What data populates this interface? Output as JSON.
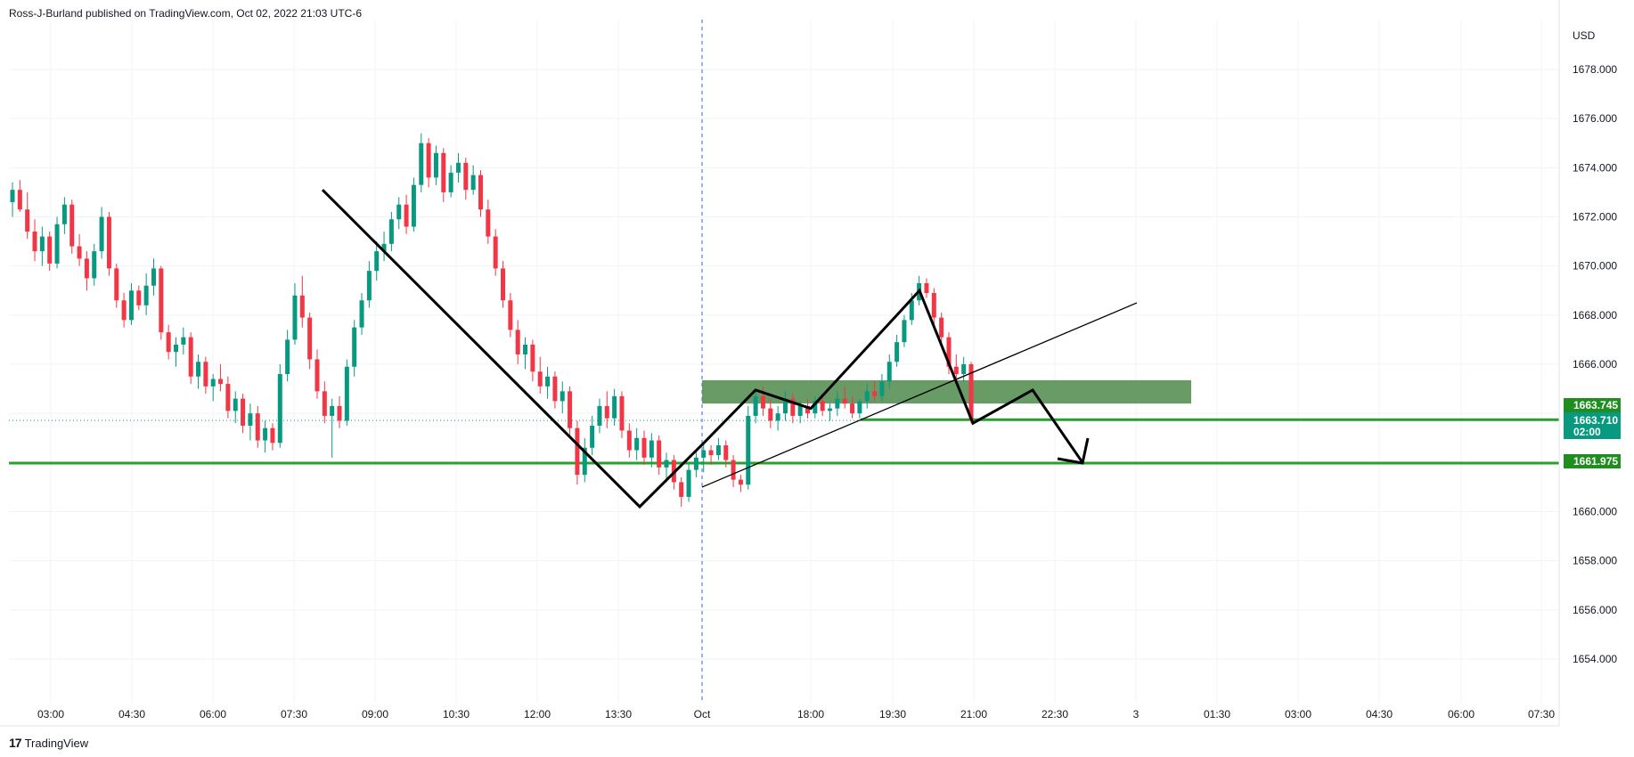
{
  "header": {
    "attribution": "Ross-J-Burland published on TradingView.com, Oct 02, 2022 21:03 UTC-6"
  },
  "footer": {
    "brand": "TradingView",
    "logo_glyph": "17"
  },
  "colors": {
    "bull": "#089981",
    "bear": "#f23645",
    "wick_bull": "#089981",
    "wick_bear": "#f23645",
    "level_line": "#2ca02c",
    "zone_fill": "#4e8a4a",
    "badge": "#1e8f1e",
    "badge_teal": "#089981",
    "grid": "#f0f3fa",
    "session": "#2962ff"
  },
  "chart_data": {
    "type": "candlestick",
    "currency": "USD",
    "ylim": [
      1652.5,
      1679.5
    ],
    "y_ticks": [
      "1678.000",
      "1676.000",
      "1674.000",
      "1672.000",
      "1670.000",
      "1668.000",
      "1666.000",
      "1664.000",
      "1662.000",
      "1660.000",
      "1658.000",
      "1656.000",
      "1654.000"
    ],
    "x_ticks": [
      "03:00",
      "04:30",
      "06:00",
      "07:30",
      "09:00",
      "10:30",
      "12:00",
      "13:30",
      "Oct",
      "18:00",
      "19:30",
      "21:00",
      "22:30",
      "3",
      "01:30",
      "03:00",
      "04:30",
      "06:00",
      "07:30"
    ],
    "price_badges": [
      {
        "label": "1663.745",
        "value": 1663.745,
        "style": "green"
      },
      {
        "label": "1663.710",
        "value": 1663.71,
        "style": "teal",
        "sub": "02:00"
      },
      {
        "label": "1661.975",
        "value": 1661.975,
        "style": "green"
      }
    ],
    "horizontal_levels": [
      1663.745,
      1661.975
    ],
    "zone": {
      "from": 1664.4,
      "to": 1665.35
    },
    "path_points": [
      {
        "x": "07:50",
        "y": 1673.1
      },
      {
        "x": "13:45",
        "y": 1660.2
      },
      {
        "x": "Oct",
        "y": 1662.8
      },
      {
        "x": "16:00",
        "y": 1664.95
      },
      {
        "x": "18:00",
        "y": 1664.2
      },
      {
        "x": "20:00",
        "y": 1669.0
      },
      {
        "x": "21:00",
        "y": 1663.6
      },
      {
        "x": "22:00",
        "y": 1664.95
      },
      {
        "x": "22:50",
        "y": 1662.0
      }
    ],
    "trend_line": [
      {
        "x": "Oct",
        "y": 1661.0
      },
      {
        "x": "23:30",
        "y": 1668.5
      }
    ],
    "candles": [
      [
        1672.6,
        1673.4,
        1672.0,
        1673.1
      ],
      [
        1673.1,
        1673.5,
        1672.2,
        1672.3
      ],
      [
        1672.3,
        1673.0,
        1671.1,
        1671.4
      ],
      [
        1671.4,
        1671.9,
        1670.2,
        1670.6
      ],
      [
        1670.6,
        1671.6,
        1670.0,
        1671.2
      ],
      [
        1671.2,
        1671.4,
        1669.8,
        1670.1
      ],
      [
        1670.1,
        1672.0,
        1669.9,
        1671.7
      ],
      [
        1671.7,
        1672.8,
        1671.3,
        1672.5
      ],
      [
        1672.5,
        1672.7,
        1670.5,
        1670.8
      ],
      [
        1670.8,
        1671.3,
        1670.0,
        1670.3
      ],
      [
        1670.3,
        1670.6,
        1669.0,
        1669.5
      ],
      [
        1669.5,
        1670.9,
        1669.2,
        1670.6
      ],
      [
        1670.6,
        1672.4,
        1670.3,
        1672.0
      ],
      [
        1672.0,
        1672.2,
        1669.6,
        1669.9
      ],
      [
        1669.9,
        1670.1,
        1668.3,
        1668.6
      ],
      [
        1668.6,
        1668.9,
        1667.5,
        1667.8
      ],
      [
        1667.8,
        1669.3,
        1667.6,
        1669.0
      ],
      [
        1669.0,
        1669.2,
        1668.2,
        1668.4
      ],
      [
        1668.4,
        1669.7,
        1668.0,
        1669.2
      ],
      [
        1669.2,
        1670.3,
        1668.8,
        1669.9
      ],
      [
        1669.9,
        1670.0,
        1667.0,
        1667.3
      ],
      [
        1667.3,
        1667.6,
        1666.2,
        1666.5
      ],
      [
        1666.5,
        1667.1,
        1665.9,
        1666.8
      ],
      [
        1666.8,
        1667.5,
        1666.4,
        1667.1
      ],
      [
        1667.1,
        1667.3,
        1665.2,
        1665.5
      ],
      [
        1665.5,
        1666.4,
        1665.0,
        1666.1
      ],
      [
        1666.1,
        1666.3,
        1664.8,
        1665.1
      ],
      [
        1665.1,
        1665.6,
        1664.5,
        1665.4
      ],
      [
        1665.4,
        1666.0,
        1664.9,
        1665.2
      ],
      [
        1665.2,
        1665.5,
        1663.8,
        1664.1
      ],
      [
        1664.1,
        1664.9,
        1663.6,
        1664.6
      ],
      [
        1664.6,
        1664.8,
        1663.2,
        1663.5
      ],
      [
        1663.5,
        1664.4,
        1662.9,
        1664.0
      ],
      [
        1664.0,
        1664.3,
        1662.6,
        1662.9
      ],
      [
        1662.9,
        1663.7,
        1662.4,
        1663.4
      ],
      [
        1663.4,
        1663.6,
        1662.5,
        1662.8
      ],
      [
        1662.8,
        1666.0,
        1662.6,
        1665.6
      ],
      [
        1665.6,
        1667.4,
        1665.3,
        1667.0
      ],
      [
        1667.0,
        1669.3,
        1666.8,
        1668.8
      ],
      [
        1668.8,
        1669.6,
        1667.5,
        1667.9
      ],
      [
        1667.9,
        1668.1,
        1665.8,
        1666.2
      ],
      [
        1666.2,
        1666.6,
        1664.6,
        1664.9
      ],
      [
        1664.9,
        1665.3,
        1663.6,
        1663.9
      ],
      [
        1663.9,
        1664.6,
        1662.2,
        1664.3
      ],
      [
        1664.3,
        1664.7,
        1663.4,
        1663.7
      ],
      [
        1663.7,
        1666.2,
        1663.5,
        1665.9
      ],
      [
        1665.9,
        1667.8,
        1665.5,
        1667.5
      ],
      [
        1667.5,
        1668.9,
        1667.2,
        1668.6
      ],
      [
        1668.6,
        1670.2,
        1668.3,
        1669.8
      ],
      [
        1669.8,
        1671.0,
        1669.4,
        1670.6
      ],
      [
        1670.6,
        1671.4,
        1670.2,
        1670.9
      ],
      [
        1670.9,
        1672.2,
        1670.6,
        1671.9
      ],
      [
        1671.9,
        1672.8,
        1671.5,
        1672.5
      ],
      [
        1672.5,
        1672.9,
        1671.3,
        1671.6
      ],
      [
        1671.6,
        1673.6,
        1671.4,
        1673.3
      ],
      [
        1673.3,
        1675.4,
        1673.0,
        1675.0
      ],
      [
        1675.0,
        1675.2,
        1673.2,
        1673.6
      ],
      [
        1673.6,
        1674.9,
        1673.3,
        1674.6
      ],
      [
        1674.6,
        1674.8,
        1672.6,
        1673.0
      ],
      [
        1673.0,
        1674.1,
        1672.8,
        1673.8
      ],
      [
        1673.8,
        1674.6,
        1673.4,
        1674.2
      ],
      [
        1674.2,
        1674.4,
        1672.7,
        1673.1
      ],
      [
        1673.1,
        1674.1,
        1672.9,
        1673.7
      ],
      [
        1673.7,
        1673.9,
        1672.0,
        1672.3
      ],
      [
        1672.3,
        1672.7,
        1670.9,
        1671.2
      ],
      [
        1671.2,
        1671.5,
        1669.6,
        1669.9
      ],
      [
        1669.9,
        1670.2,
        1668.3,
        1668.6
      ],
      [
        1668.6,
        1668.9,
        1667.1,
        1667.4
      ],
      [
        1667.4,
        1667.8,
        1666.0,
        1666.4
      ],
      [
        1666.4,
        1667.1,
        1665.8,
        1666.8
      ],
      [
        1666.8,
        1667.0,
        1665.3,
        1665.7
      ],
      [
        1665.7,
        1666.3,
        1664.8,
        1665.1
      ],
      [
        1665.1,
        1665.9,
        1664.6,
        1665.5
      ],
      [
        1665.5,
        1665.7,
        1664.2,
        1664.5
      ],
      [
        1664.5,
        1665.3,
        1664.0,
        1664.9
      ],
      [
        1664.9,
        1665.1,
        1663.1,
        1663.4
      ],
      [
        1663.4,
        1663.7,
        1661.1,
        1661.5
      ],
      [
        1661.5,
        1663.0,
        1661.2,
        1662.6
      ],
      [
        1662.6,
        1663.9,
        1662.3,
        1663.5
      ],
      [
        1663.5,
        1664.6,
        1663.2,
        1664.3
      ],
      [
        1664.3,
        1664.9,
        1663.4,
        1663.8
      ],
      [
        1663.8,
        1665.0,
        1663.5,
        1664.7
      ],
      [
        1664.7,
        1664.9,
        1663.0,
        1663.3
      ],
      [
        1663.3,
        1663.6,
        1662.2,
        1662.5
      ],
      [
        1662.5,
        1663.4,
        1662.1,
        1663.0
      ],
      [
        1663.0,
        1663.3,
        1661.9,
        1662.2
      ],
      [
        1662.2,
        1663.2,
        1661.8,
        1662.9
      ],
      [
        1662.9,
        1663.1,
        1661.5,
        1661.8
      ],
      [
        1661.8,
        1662.4,
        1661.2,
        1662.1
      ],
      [
        1662.1,
        1662.3,
        1660.9,
        1661.2
      ],
      [
        1661.2,
        1661.4,
        1660.2,
        1660.6
      ],
      [
        1660.6,
        1662.0,
        1660.4,
        1661.7
      ],
      [
        1661.7,
        1662.5,
        1661.4,
        1662.2
      ],
      [
        1662.2,
        1662.8,
        1661.6,
        1662.5
      ],
      [
        1662.5,
        1662.7,
        1661.9,
        1662.3
      ],
      [
        1662.3,
        1663.0,
        1662.1,
        1662.7
      ],
      [
        1662.7,
        1662.9,
        1661.8,
        1662.1
      ],
      [
        1662.1,
        1662.3,
        1661.0,
        1661.3
      ],
      [
        1661.3,
        1661.5,
        1660.8,
        1661.1
      ],
      [
        1661.1,
        1664.3,
        1660.9,
        1663.9
      ],
      [
        1663.9,
        1665.0,
        1663.6,
        1664.7
      ],
      [
        1664.7,
        1665.1,
        1663.9,
        1664.2
      ],
      [
        1664.2,
        1664.6,
        1663.4,
        1663.7
      ],
      [
        1663.7,
        1664.3,
        1663.3,
        1664.0
      ],
      [
        1664.0,
        1664.9,
        1663.7,
        1664.6
      ],
      [
        1664.6,
        1664.8,
        1663.6,
        1663.9
      ],
      [
        1663.9,
        1664.5,
        1663.6,
        1664.3
      ],
      [
        1664.3,
        1664.6,
        1663.8,
        1664.0
      ],
      [
        1664.0,
        1664.7,
        1663.8,
        1664.5
      ],
      [
        1664.5,
        1664.8,
        1663.9,
        1664.1
      ],
      [
        1664.1,
        1664.4,
        1663.7,
        1664.2
      ],
      [
        1664.2,
        1664.9,
        1663.9,
        1664.6
      ],
      [
        1664.6,
        1665.1,
        1664.2,
        1664.4
      ],
      [
        1664.4,
        1664.7,
        1663.8,
        1664.0
      ],
      [
        1664.0,
        1664.6,
        1663.8,
        1664.5
      ],
      [
        1664.5,
        1665.2,
        1664.2,
        1664.9
      ],
      [
        1664.9,
        1665.3,
        1664.5,
        1664.7
      ],
      [
        1664.7,
        1665.6,
        1664.5,
        1665.3
      ],
      [
        1665.3,
        1666.4,
        1665.0,
        1666.1
      ],
      [
        1666.1,
        1667.2,
        1665.9,
        1666.9
      ],
      [
        1666.9,
        1668.0,
        1666.7,
        1667.8
      ],
      [
        1667.8,
        1668.9,
        1667.6,
        1668.6
      ],
      [
        1668.6,
        1669.6,
        1668.4,
        1669.3
      ],
      [
        1669.3,
        1669.5,
        1668.7,
        1668.9
      ],
      [
        1668.9,
        1669.1,
        1667.6,
        1667.9
      ],
      [
        1667.9,
        1668.1,
        1666.8,
        1667.1
      ],
      [
        1667.1,
        1667.3,
        1665.6,
        1665.9
      ],
      [
        1665.9,
        1666.4,
        1665.2,
        1665.6
      ],
      [
        1665.6,
        1666.3,
        1665.3,
        1666.0
      ],
      [
        1666.0,
        1666.1,
        1663.6,
        1663.7
      ]
    ]
  }
}
